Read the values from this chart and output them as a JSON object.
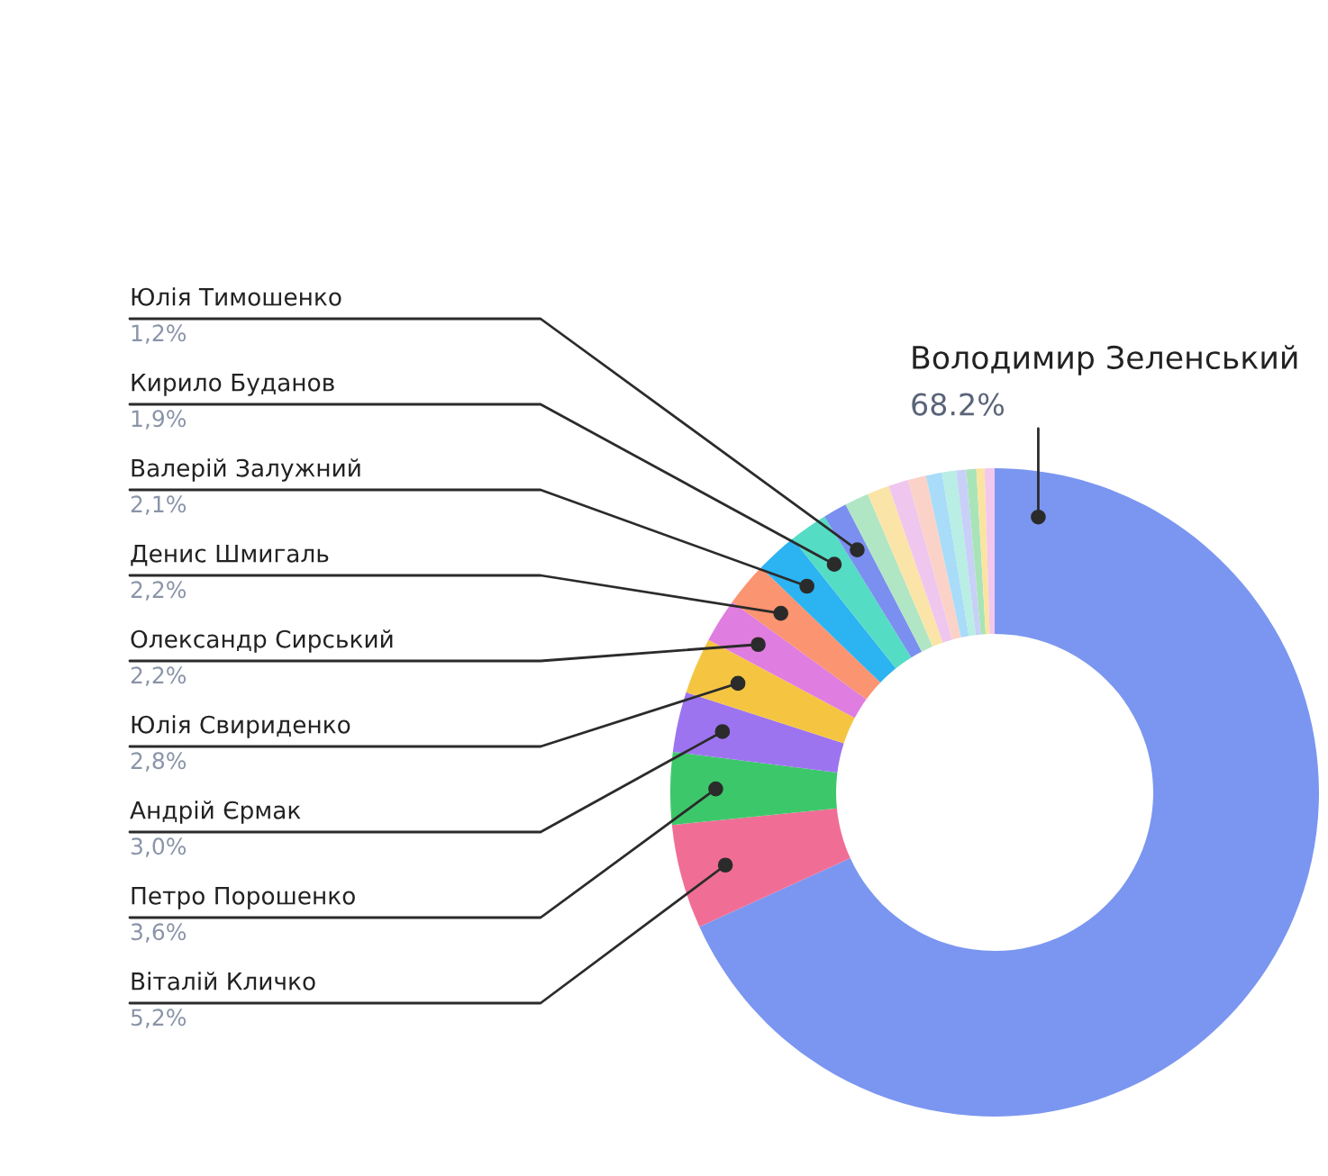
{
  "chart_data": {
    "type": "donut",
    "categories": [
      "Володимир Зеленський",
      "Віталій Кличко",
      "Петро Порошенко",
      "Андрій Єрмак",
      "Юлія Свириденко",
      "Олександр Сирський",
      "Денис Шмигаль",
      "Валерій Залужний",
      "Кирило Буданов",
      "Юлія Тимошенко",
      null,
      null,
      null,
      null,
      null,
      null,
      null,
      null,
      null,
      null
    ],
    "values": [
      68.2,
      5.2,
      3.6,
      3.0,
      2.8,
      2.2,
      2.2,
      2.1,
      1.9,
      1.2,
      1.2,
      1.1,
      1.0,
      0.9,
      0.8,
      0.7,
      0.5,
      0.5,
      0.4,
      0.5
    ],
    "value_labels": [
      "68.2%",
      "5,2%",
      "3,6%",
      "3,0%",
      "2,8%",
      "2,2%",
      "2,2%",
      "2,1%",
      "1,9%",
      "1,2%",
      null,
      null,
      null,
      null,
      null,
      null,
      null,
      null,
      null,
      null
    ],
    "colors": [
      "#7b96f0",
      "#f06e96",
      "#3cc86a",
      "#9d74f0",
      "#f5c542",
      "#e07de0",
      "#fb9470",
      "#2cb3f2",
      "#55dcc4",
      "#7b8ff0",
      "#b0e6c4",
      "#fbe4a8",
      "#efc6ee",
      "#fbd2c8",
      "#a8dcf8",
      "#b8eee4",
      "#c8d0f8",
      "#a8e4b8",
      "#fbe4a0",
      "#f2c8ec"
    ]
  }
}
